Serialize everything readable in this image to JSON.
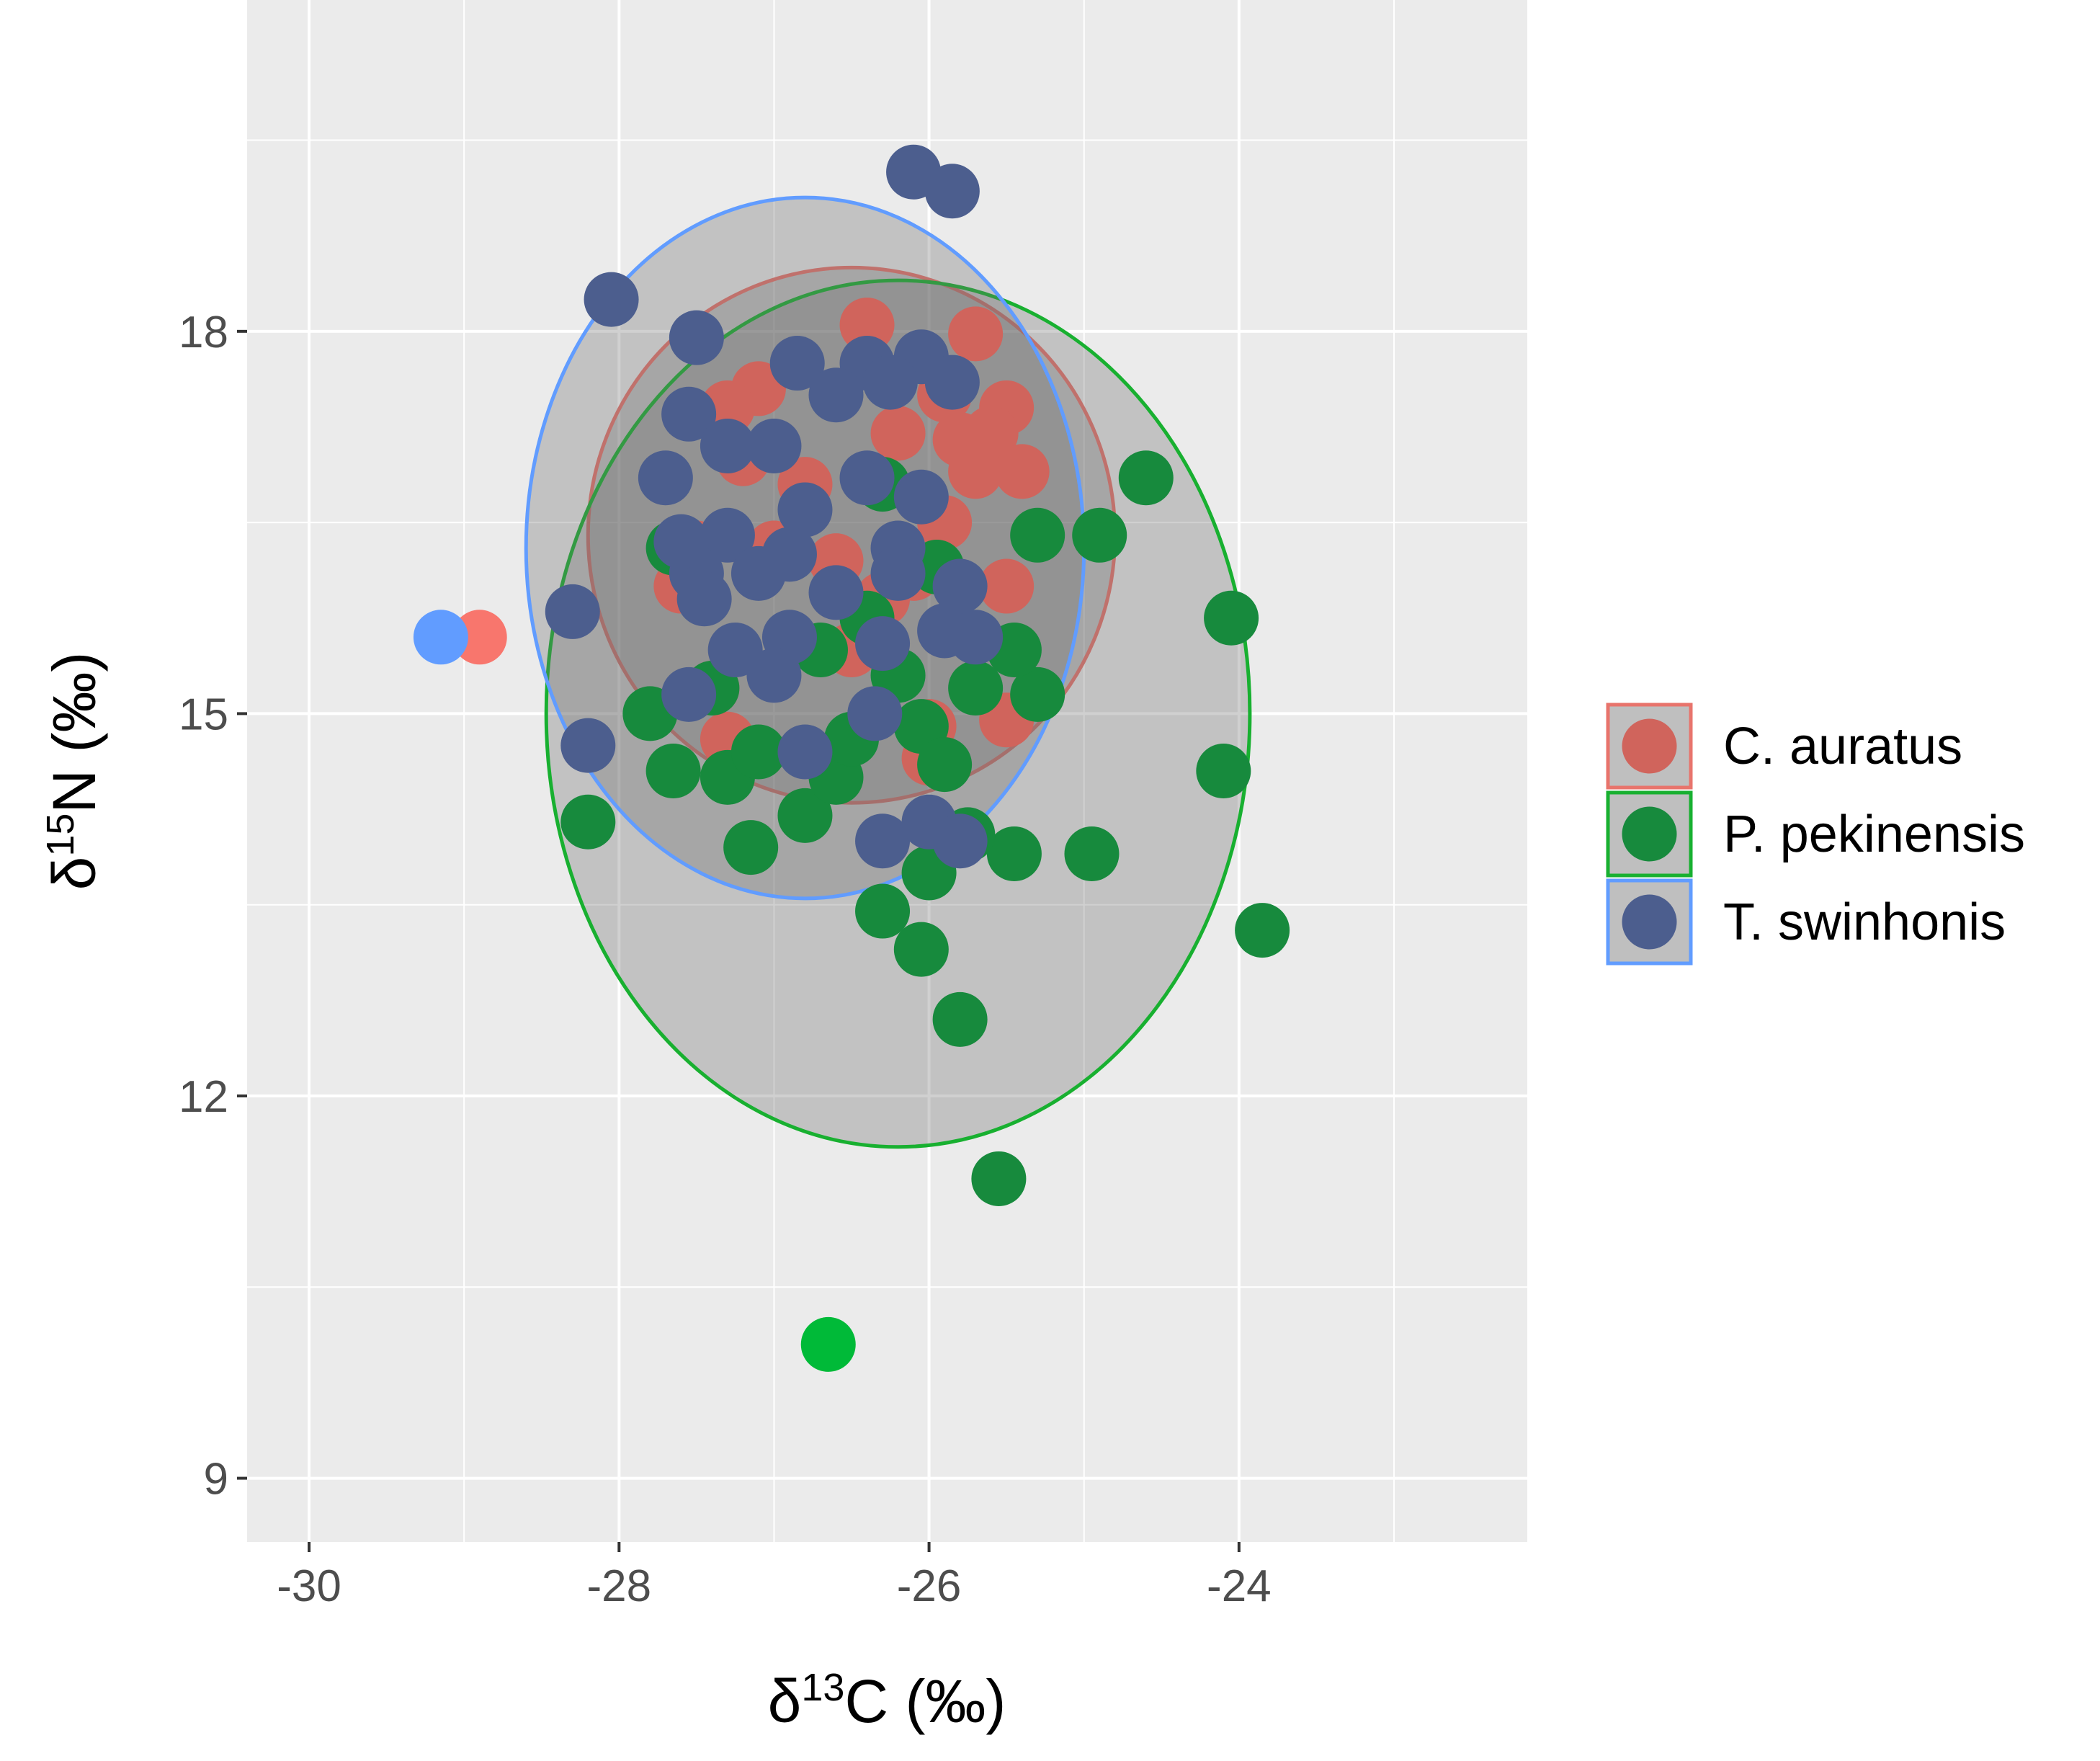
{
  "chart_data": {
    "type": "scatter",
    "title": "",
    "xlabel": {
      "delta": "δ",
      "sup": "13",
      "element": "C",
      "unit": " (‰)"
    },
    "ylabel": {
      "delta": "δ",
      "sup": "15",
      "element": "N",
      "unit": " (‰)"
    },
    "xlim": [
      -30.4,
      -22.14
    ],
    "ylim": [
      8.5,
      20.6
    ],
    "x_ticks": [
      -30,
      -28,
      -26,
      -24
    ],
    "x_tick_labels": [
      "-30",
      "-28",
      "-26",
      "-24"
    ],
    "x_minor": [
      -29,
      -27,
      -25,
      -23
    ],
    "y_ticks": [
      9,
      12,
      15,
      18
    ],
    "y_tick_labels": [
      "9",
      "12",
      "15",
      "18"
    ],
    "y_minor": [
      10.5,
      13.5,
      16.5,
      19.5
    ],
    "grid": true,
    "panel_background": "#ebebeb",
    "legend_position": "right",
    "series": [
      {
        "name": "C. auratus",
        "color": "#d0645c",
        "outlier_color": "#f8766d",
        "ellipse_color": "#e8746c",
        "ellipse": {
          "cx": -26.5,
          "cy": 16.4,
          "rx": 1.7,
          "ry": 2.1
        },
        "points": [
          [
            -28.9,
            15.6
          ],
          [
            -26.4,
            18.05
          ],
          [
            -25.7,
            17.98
          ],
          [
            -25.5,
            17.4
          ],
          [
            -25.6,
            17.2
          ],
          [
            -25.8,
            17.15
          ],
          [
            -25.4,
            16.9
          ],
          [
            -25.7,
            16.9
          ],
          [
            -25.5,
            16.0
          ],
          [
            -25.5,
            14.95
          ],
          [
            -26.0,
            14.9
          ],
          [
            -26.0,
            14.65
          ],
          [
            -27.4,
            15.2
          ],
          [
            -27.3,
            14.8
          ],
          [
            -27.6,
            16.0
          ],
          [
            -27.1,
            17.55
          ],
          [
            -27.3,
            17.4
          ],
          [
            -27.2,
            17.0
          ],
          [
            -26.6,
            16.2
          ],
          [
            -26.3,
            15.9
          ],
          [
            -25.9,
            16.5
          ],
          [
            -26.2,
            17.2
          ],
          [
            -26.8,
            16.8
          ],
          [
            -27.0,
            16.3
          ],
          [
            -26.5,
            15.5
          ],
          [
            -27.5,
            16.3
          ],
          [
            -25.9,
            17.5
          ],
          [
            -26.1,
            16.1
          ]
        ]
      },
      {
        "name": "P. pekinensis",
        "color": "#178a3d",
        "outlier_color": "#00ba38",
        "ellipse_color": "#18b030",
        "ellipse": {
          "cx": -26.2,
          "cy": 15.0,
          "rx": 2.27,
          "ry": 3.4
        },
        "points": [
          [
            -26.65,
            10.05
          ],
          [
            -25.55,
            11.35
          ],
          [
            -23.85,
            13.3
          ],
          [
            -24.05,
            15.75
          ],
          [
            -24.1,
            14.55
          ],
          [
            -25.8,
            12.6
          ],
          [
            -26.05,
            13.15
          ],
          [
            -26.3,
            13.45
          ],
          [
            -24.95,
            13.9
          ],
          [
            -25.45,
            13.9
          ],
          [
            -26.0,
            13.75
          ],
          [
            -27.15,
            13.95
          ],
          [
            -26.8,
            14.2
          ],
          [
            -27.65,
            14.55
          ],
          [
            -27.3,
            14.5
          ],
          [
            -28.2,
            14.15
          ],
          [
            -27.8,
            15.0
          ],
          [
            -27.4,
            15.2
          ],
          [
            -25.75,
            14.05
          ],
          [
            -26.6,
            14.5
          ],
          [
            -26.5,
            14.8
          ],
          [
            -26.05,
            14.9
          ],
          [
            -25.3,
            15.15
          ],
          [
            -25.45,
            15.5
          ],
          [
            -25.7,
            15.2
          ],
          [
            -26.2,
            15.3
          ],
          [
            -26.7,
            15.5
          ],
          [
            -27.1,
            14.7
          ],
          [
            -24.9,
            16.4
          ],
          [
            -25.3,
            16.4
          ],
          [
            -24.6,
            16.85
          ],
          [
            -27.65,
            16.3
          ],
          [
            -25.95,
            16.15
          ],
          [
            -26.4,
            15.75
          ],
          [
            -25.9,
            14.6
          ],
          [
            -26.3,
            16.8
          ]
        ]
      },
      {
        "name": "T. swinhonis",
        "color": "#4c5e8e",
        "outlier_color": "#619cff",
        "ellipse_color": "#619cff",
        "ellipse": {
          "cx": -26.8,
          "cy": 16.3,
          "rx": 1.8,
          "ry": 2.75
        },
        "points": [
          [
            -29.15,
            15.6
          ],
          [
            -28.05,
            18.25
          ],
          [
            -26.1,
            19.25
          ],
          [
            -25.85,
            19.1
          ],
          [
            -27.5,
            17.95
          ],
          [
            -26.85,
            17.75
          ],
          [
            -26.4,
            17.75
          ],
          [
            -26.05,
            17.8
          ],
          [
            -25.85,
            17.6
          ],
          [
            -26.6,
            17.5
          ],
          [
            -27.55,
            17.35
          ],
          [
            -27.7,
            16.85
          ],
          [
            -27.3,
            17.1
          ],
          [
            -27.0,
            17.1
          ],
          [
            -26.8,
            16.6
          ],
          [
            -26.4,
            16.85
          ],
          [
            -26.2,
            16.3
          ],
          [
            -26.05,
            16.7
          ],
          [
            -27.3,
            16.4
          ],
          [
            -27.5,
            16.1
          ],
          [
            -27.45,
            15.9
          ],
          [
            -27.1,
            16.1
          ],
          [
            -26.9,
            15.6
          ],
          [
            -27.25,
            15.5
          ],
          [
            -27.0,
            15.3
          ],
          [
            -26.3,
            15.55
          ],
          [
            -26.35,
            15.0
          ],
          [
            -25.9,
            15.65
          ],
          [
            -25.7,
            15.6
          ],
          [
            -25.8,
            16.0
          ],
          [
            -26.6,
            15.95
          ],
          [
            -26.25,
            17.6
          ],
          [
            -27.55,
            15.15
          ],
          [
            -28.3,
            15.8
          ],
          [
            -28.2,
            14.75
          ],
          [
            -26.3,
            14.0
          ],
          [
            -26.0,
            14.15
          ],
          [
            -25.8,
            14.0
          ],
          [
            -26.8,
            14.7
          ],
          [
            -26.9,
            16.25
          ],
          [
            -26.2,
            16.1
          ],
          [
            -27.6,
            16.35
          ]
        ]
      }
    ]
  }
}
